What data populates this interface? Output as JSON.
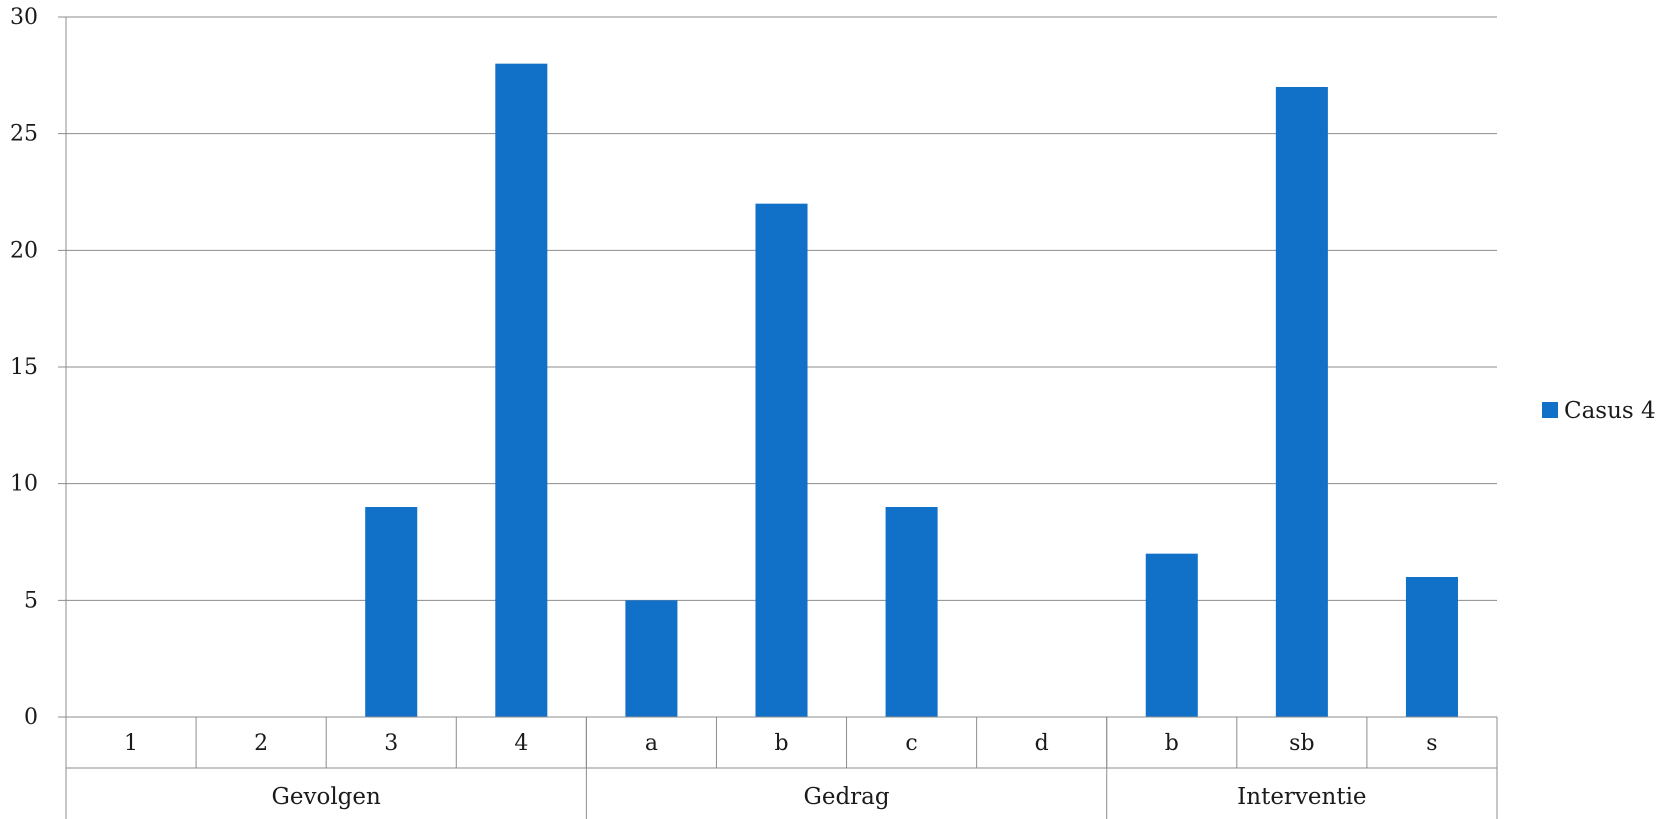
{
  "chart_data": {
    "type": "bar",
    "title": "",
    "xlabel": "",
    "ylabel": "",
    "ylim": [
      0,
      30
    ],
    "yticks": [
      0,
      5,
      10,
      15,
      20,
      25,
      30
    ],
    "grid": true,
    "legend_position": "right",
    "series": [
      {
        "name": "Casus 4",
        "color": "#1170c8",
        "values": [
          0,
          0,
          9,
          28,
          5,
          22,
          9,
          0,
          7,
          27,
          6
        ]
      }
    ],
    "categories": [
      "1",
      "2",
      "3",
      "4",
      "a",
      "b",
      "c",
      "d",
      "b",
      "sb",
      "s"
    ],
    "groups": [
      {
        "label": "Gevolgen",
        "count": 4
      },
      {
        "label": "Gedrag",
        "count": 4
      },
      {
        "label": "Interventie",
        "count": 3
      }
    ]
  }
}
